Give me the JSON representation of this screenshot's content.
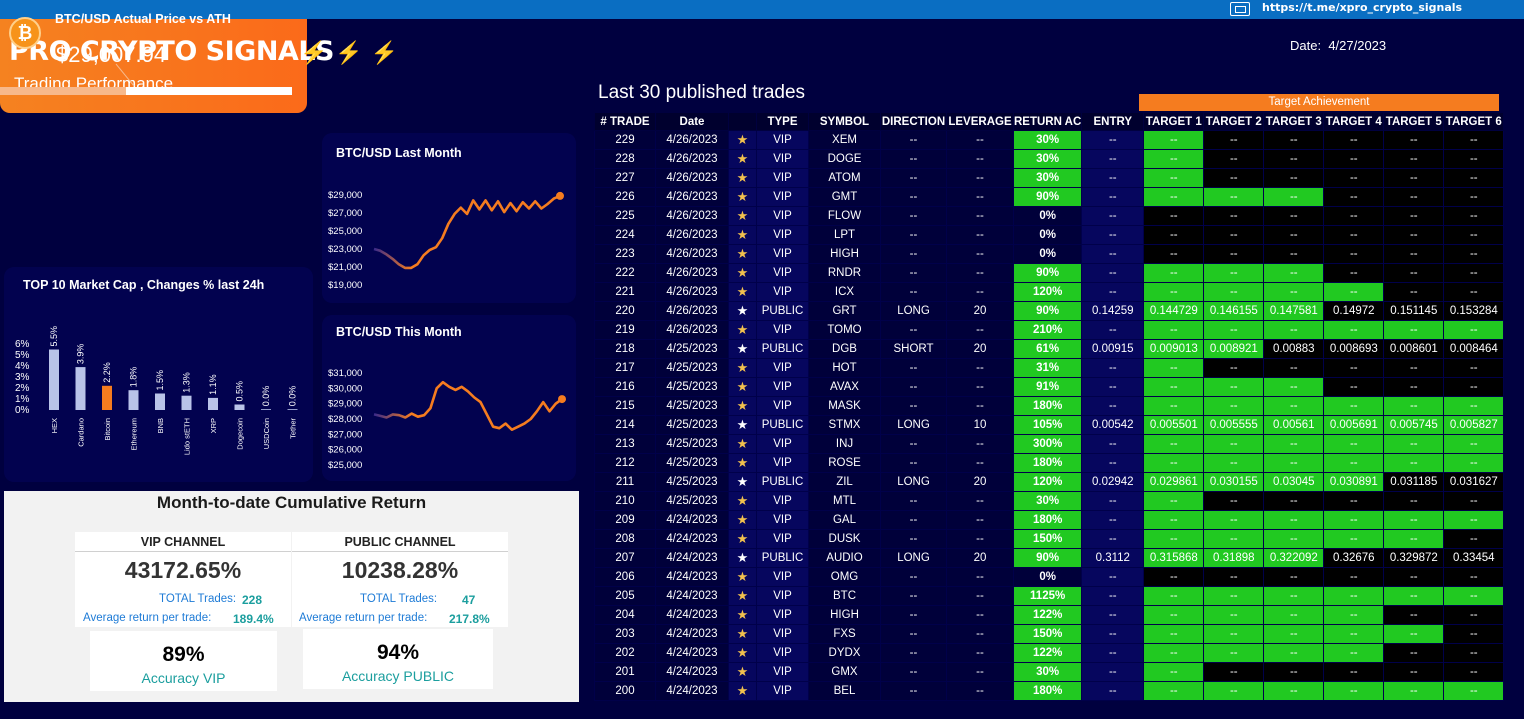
{
  "topbar": {
    "link": "https://t.me/xpro_crypto_signals"
  },
  "header": {
    "title": "PRO CRYPTO SIGNALS",
    "bolts": "⚡⚡⚡",
    "subtitle": "Trading Performance",
    "date_label": "Date:",
    "date_value": "4/27/2023"
  },
  "btc_card": {
    "title": "BTC/USD Actual Price vs ATH",
    "price": "$29,007.94",
    "coin_symbol": "₿",
    "ath_fraction": 0.43
  },
  "last_month": {
    "title": "BTC/USD Last Month",
    "chart_data": {
      "type": "line",
      "y_ticks": [
        "$29,000",
        "$27,000",
        "$25,000",
        "$23,000",
        "$21,000",
        "$19,000"
      ],
      "ylim": [
        19000,
        29000
      ],
      "values": [
        23000,
        22800,
        22400,
        21900,
        21300,
        20900,
        20900,
        21300,
        22300,
        22900,
        23200,
        24200,
        25800,
        26900,
        27600,
        26900,
        28400,
        27400,
        28400,
        27300,
        28300,
        27100,
        28100,
        27200,
        28200,
        27500,
        28300,
        27500,
        28000,
        28600,
        28900
      ]
    }
  },
  "this_month": {
    "title": "BTC/USD This Month",
    "chart_data": {
      "type": "line",
      "y_ticks": [
        "$31,000",
        "$30,000",
        "$29,000",
        "$28,000",
        "$27,000",
        "$26,000",
        "$25,000"
      ],
      "ylim": [
        25000,
        31000
      ],
      "values": [
        28300,
        28200,
        28100,
        28300,
        28250,
        28100,
        28350,
        28150,
        28250,
        28700,
        30000,
        30400,
        30100,
        29900,
        30100,
        29800,
        29400,
        29100,
        28300,
        27500,
        27400,
        27700,
        27300,
        27500,
        27700,
        28000,
        28500,
        29100,
        28500,
        29000,
        29300
      ]
    }
  },
  "mcap": {
    "title": "TOP 10  Market Cap , Changes % last 24h",
    "chart_data": {
      "type": "bar",
      "y_ticks": [
        "6%",
        "5%",
        "4%",
        "3%",
        "2%",
        "1%",
        "0%"
      ],
      "ylim": [
        0,
        6
      ],
      "categories": [
        "HEX",
        "Cardano",
        "Bitcoin",
        "Ethereum",
        "BNB",
        "Lido stETH",
        "XRP",
        "Dogecoin",
        "USDCoin",
        "Tether"
      ],
      "values": [
        5.5,
        3.9,
        2.2,
        1.8,
        1.5,
        1.3,
        1.1,
        0.5,
        0.0,
        0.0
      ],
      "labels": [
        "5.5%",
        "3.9%",
        "2.2%",
        "1.8%",
        "1.5%",
        "1.3%",
        "1.1%",
        "0.5%",
        "0.0%",
        "0.0%"
      ],
      "highlight_index": 2
    }
  },
  "cumulative": {
    "title": "Month-to-date Cumulative Return",
    "vip": {
      "header": "VIP CHANNEL",
      "value": "43172.65%",
      "trades_label": "TOTAL Trades:",
      "trades": "228",
      "avg_label": "Average return per trade:",
      "avg": "189.4%"
    },
    "public": {
      "header": "PUBLIC CHANNEL",
      "value": "10238.28%",
      "trades_label": "TOTAL Trades:",
      "trades": "47",
      "avg_label": "Average return per trade:",
      "avg": "217.8%"
    },
    "acc_vip": {
      "pct": "89%",
      "label": "Accuracy VIP"
    },
    "acc_public": {
      "pct": "94%",
      "label": "Accuracy PUBLIC"
    }
  },
  "trades": {
    "title": "Last 30 published trades",
    "target_header": "Target Achievement",
    "columns": [
      "# TRADE",
      "Date",
      "",
      "TYPE",
      "SYMBOL",
      "DIRECTION",
      "LEVERAGE",
      "RETURN AC",
      "ENTRY",
      "TARGET 1",
      "TARGET 2",
      "TARGET 3",
      "TARGET 4",
      "TARGET 5",
      "TARGET 6"
    ],
    "rows": [
      {
        "id": "229",
        "date": "4/26/2023",
        "type": "VIP",
        "symbol": "XEM",
        "dir": "--",
        "lev": "--",
        "ret": "30%",
        "entry": "--",
        "t": [
          "--",
          "--",
          "--",
          "--",
          "--",
          "--"
        ],
        "hit": 1
      },
      {
        "id": "228",
        "date": "4/26/2023",
        "type": "VIP",
        "symbol": "DOGE",
        "dir": "--",
        "lev": "--",
        "ret": "30%",
        "entry": "--",
        "t": [
          "--",
          "--",
          "--",
          "--",
          "--",
          "--"
        ],
        "hit": 1
      },
      {
        "id": "227",
        "date": "4/26/2023",
        "type": "VIP",
        "symbol": "ATOM",
        "dir": "--",
        "lev": "--",
        "ret": "30%",
        "entry": "--",
        "t": [
          "--",
          "--",
          "--",
          "--",
          "--",
          "--"
        ],
        "hit": 1
      },
      {
        "id": "226",
        "date": "4/26/2023",
        "type": "VIP",
        "symbol": "GMT",
        "dir": "--",
        "lev": "--",
        "ret": "90%",
        "entry": "--",
        "t": [
          "--",
          "--",
          "--",
          "--",
          "--",
          "--"
        ],
        "hit": 3
      },
      {
        "id": "225",
        "date": "4/26/2023",
        "type": "VIP",
        "symbol": "FLOW",
        "dir": "--",
        "lev": "--",
        "ret": "0%",
        "entry": "--",
        "t": [
          "--",
          "--",
          "--",
          "--",
          "--",
          "--"
        ],
        "hit": 0
      },
      {
        "id": "224",
        "date": "4/26/2023",
        "type": "VIP",
        "symbol": "LPT",
        "dir": "--",
        "lev": "--",
        "ret": "0%",
        "entry": "--",
        "t": [
          "--",
          "--",
          "--",
          "--",
          "--",
          "--"
        ],
        "hit": 0
      },
      {
        "id": "223",
        "date": "4/26/2023",
        "type": "VIP",
        "symbol": "HIGH",
        "dir": "--",
        "lev": "--",
        "ret": "0%",
        "entry": "--",
        "t": [
          "--",
          "--",
          "--",
          "--",
          "--",
          "--"
        ],
        "hit": 0
      },
      {
        "id": "222",
        "date": "4/26/2023",
        "type": "VIP",
        "symbol": "RNDR",
        "dir": "--",
        "lev": "--",
        "ret": "90%",
        "entry": "--",
        "t": [
          "--",
          "--",
          "--",
          "--",
          "--",
          "--"
        ],
        "hit": 3
      },
      {
        "id": "221",
        "date": "4/26/2023",
        "type": "VIP",
        "symbol": "ICX",
        "dir": "--",
        "lev": "--",
        "ret": "120%",
        "entry": "--",
        "t": [
          "--",
          "--",
          "--",
          "--",
          "--",
          "--"
        ],
        "hit": 4
      },
      {
        "id": "220",
        "date": "4/26/2023",
        "type": "PUBLIC",
        "symbol": "GRT",
        "dir": "LONG",
        "lev": "20",
        "ret": "90%",
        "entry": "0.14259",
        "t": [
          "0.144729",
          "0.146155",
          "0.147581",
          "0.14972",
          "0.151145",
          "0.153284"
        ],
        "hit": 3
      },
      {
        "id": "219",
        "date": "4/26/2023",
        "type": "VIP",
        "symbol": "TOMO",
        "dir": "--",
        "lev": "--",
        "ret": "210%",
        "entry": "--",
        "t": [
          "--",
          "--",
          "--",
          "--",
          "--",
          "--"
        ],
        "hit": 6
      },
      {
        "id": "218",
        "date": "4/25/2023",
        "type": "PUBLIC",
        "symbol": "DGB",
        "dir": "SHORT",
        "lev": "20",
        "ret": "61%",
        "entry": "0.00915",
        "t": [
          "0.009013",
          "0.008921",
          "0.00883",
          "0.008693",
          "0.008601",
          "0.008464"
        ],
        "hit": 2
      },
      {
        "id": "217",
        "date": "4/25/2023",
        "type": "VIP",
        "symbol": "HOT",
        "dir": "--",
        "lev": "--",
        "ret": "31%",
        "entry": "--",
        "t": [
          "--",
          "--",
          "--",
          "--",
          "--",
          "--"
        ],
        "hit": 1
      },
      {
        "id": "216",
        "date": "4/25/2023",
        "type": "VIP",
        "symbol": "AVAX",
        "dir": "--",
        "lev": "--",
        "ret": "91%",
        "entry": "--",
        "t": [
          "--",
          "--",
          "--",
          "--",
          "--",
          "--"
        ],
        "hit": 3
      },
      {
        "id": "215",
        "date": "4/25/2023",
        "type": "VIP",
        "symbol": "MASK",
        "dir": "--",
        "lev": "--",
        "ret": "180%",
        "entry": "--",
        "t": [
          "--",
          "--",
          "--",
          "--",
          "--",
          "--"
        ],
        "hit": 6
      },
      {
        "id": "214",
        "date": "4/25/2023",
        "type": "PUBLIC",
        "symbol": "STMX",
        "dir": "LONG",
        "lev": "10",
        "ret": "105%",
        "entry": "0.00542",
        "t": [
          "0.005501",
          "0.005555",
          "0.00561",
          "0.005691",
          "0.005745",
          "0.005827"
        ],
        "hit": 6
      },
      {
        "id": "213",
        "date": "4/25/2023",
        "type": "VIP",
        "symbol": "INJ",
        "dir": "--",
        "lev": "--",
        "ret": "300%",
        "entry": "--",
        "t": [
          "--",
          "--",
          "--",
          "--",
          "--",
          "--"
        ],
        "hit": 6
      },
      {
        "id": "212",
        "date": "4/25/2023",
        "type": "VIP",
        "symbol": "ROSE",
        "dir": "--",
        "lev": "--",
        "ret": "180%",
        "entry": "--",
        "t": [
          "--",
          "--",
          "--",
          "--",
          "--",
          "--"
        ],
        "hit": 6
      },
      {
        "id": "211",
        "date": "4/25/2023",
        "type": "PUBLIC",
        "symbol": "ZIL",
        "dir": "LONG",
        "lev": "20",
        "ret": "120%",
        "entry": "0.02942",
        "t": [
          "0.029861",
          "0.030155",
          "0.03045",
          "0.030891",
          "0.031185",
          "0.031627"
        ],
        "hit": 4
      },
      {
        "id": "210",
        "date": "4/25/2023",
        "type": "VIP",
        "symbol": "MTL",
        "dir": "--",
        "lev": "--",
        "ret": "30%",
        "entry": "--",
        "t": [
          "--",
          "--",
          "--",
          "--",
          "--",
          "--"
        ],
        "hit": 1
      },
      {
        "id": "209",
        "date": "4/24/2023",
        "type": "VIP",
        "symbol": "GAL",
        "dir": "--",
        "lev": "--",
        "ret": "180%",
        "entry": "--",
        "t": [
          "--",
          "--",
          "--",
          "--",
          "--",
          "--"
        ],
        "hit": 6
      },
      {
        "id": "208",
        "date": "4/24/2023",
        "type": "VIP",
        "symbol": "DUSK",
        "dir": "--",
        "lev": "--",
        "ret": "150%",
        "entry": "--",
        "t": [
          "--",
          "--",
          "--",
          "--",
          "--",
          "--"
        ],
        "hit": 5
      },
      {
        "id": "207",
        "date": "4/24/2023",
        "type": "PUBLIC",
        "symbol": "AUDIO",
        "dir": "LONG",
        "lev": "20",
        "ret": "90%",
        "entry": "0.3112",
        "t": [
          "0.315868",
          "0.31898",
          "0.322092",
          "0.32676",
          "0.329872",
          "0.33454"
        ],
        "hit": 3
      },
      {
        "id": "206",
        "date": "4/24/2023",
        "type": "VIP",
        "symbol": "OMG",
        "dir": "--",
        "lev": "--",
        "ret": "0%",
        "entry": "--",
        "t": [
          "--",
          "--",
          "--",
          "--",
          "--",
          "--"
        ],
        "hit": 0
      },
      {
        "id": "205",
        "date": "4/24/2023",
        "type": "VIP",
        "symbol": "BTC",
        "dir": "--",
        "lev": "--",
        "ret": "1125%",
        "entry": "--",
        "t": [
          "--",
          "--",
          "--",
          "--",
          "--",
          "--"
        ],
        "hit": 6
      },
      {
        "id": "204",
        "date": "4/24/2023",
        "type": "VIP",
        "symbol": "HIGH",
        "dir": "--",
        "lev": "--",
        "ret": "122%",
        "entry": "--",
        "t": [
          "--",
          "--",
          "--",
          "--",
          "--",
          "--"
        ],
        "hit": 4
      },
      {
        "id": "203",
        "date": "4/24/2023",
        "type": "VIP",
        "symbol": "FXS",
        "dir": "--",
        "lev": "--",
        "ret": "150%",
        "entry": "--",
        "t": [
          "--",
          "--",
          "--",
          "--",
          "--",
          "--"
        ],
        "hit": 5
      },
      {
        "id": "202",
        "date": "4/24/2023",
        "type": "VIP",
        "symbol": "DYDX",
        "dir": "--",
        "lev": "--",
        "ret": "122%",
        "entry": "--",
        "t": [
          "--",
          "--",
          "--",
          "--",
          "--",
          "--"
        ],
        "hit": 4
      },
      {
        "id": "201",
        "date": "4/24/2023",
        "type": "VIP",
        "symbol": "GMX",
        "dir": "--",
        "lev": "--",
        "ret": "30%",
        "entry": "--",
        "t": [
          "--",
          "--",
          "--",
          "--",
          "--",
          "--"
        ],
        "hit": 1
      },
      {
        "id": "200",
        "date": "4/24/2023",
        "type": "VIP",
        "symbol": "BEL",
        "dir": "--",
        "lev": "--",
        "ret": "180%",
        "entry": "--",
        "t": [
          "--",
          "--",
          "--",
          "--",
          "--",
          "--"
        ],
        "hit": 6
      }
    ]
  }
}
